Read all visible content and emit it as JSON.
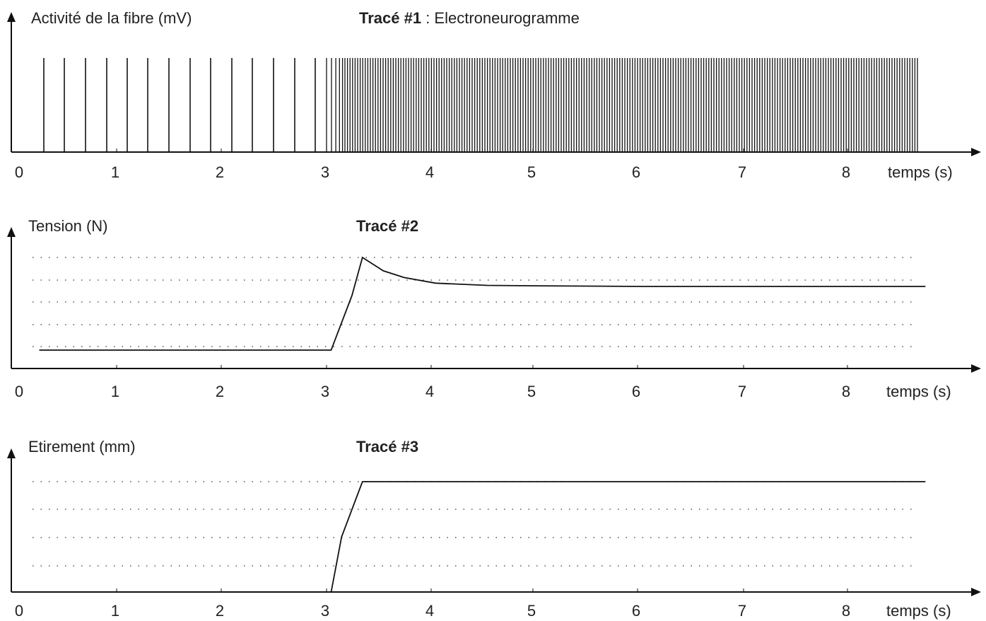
{
  "chart_data": [
    {
      "type": "line",
      "title_bold": "Tracé #1",
      "title_rest": " : Electroneurogramme",
      "ylabel": "Activité de la fibre (mV)",
      "xlabel": "temps (s)",
      "x_ticks": [
        "0",
        "1",
        "2",
        "3",
        "4",
        "5",
        "6",
        "7",
        "8"
      ],
      "xlim": [
        0,
        9.3
      ],
      "grid": false,
      "spikes": {
        "phase1": {
          "start": 0.25,
          "end": 2.9,
          "interval": 0.2
        },
        "phase2": {
          "start": 3.0,
          "end": 8.7,
          "interval": 0.025
        }
      }
    },
    {
      "type": "line",
      "title_bold": "Tracé #2",
      "ylabel": "Tension (N)",
      "xlabel": "temps (s)",
      "x_ticks": [
        "0",
        "1",
        "2",
        "3",
        "4",
        "5",
        "6",
        "7",
        "8"
      ],
      "xlim": [
        0,
        9.3
      ],
      "ylim": [
        0,
        5
      ],
      "grid": true,
      "series": [
        {
          "x": [
            0.2,
            3.0,
            3.2,
            3.3,
            3.5,
            3.7,
            4.0,
            4.5,
            5.0,
            5.3,
            6.0,
            7.0,
            8.0,
            8.7
          ],
          "y": [
            0.85,
            0.85,
            3.3,
            5.0,
            4.4,
            4.1,
            3.85,
            3.75,
            3.73,
            3.72,
            3.7,
            3.7,
            3.7,
            3.7
          ]
        }
      ]
    },
    {
      "type": "line",
      "title_bold": "Tracé #3",
      "ylabel": "Etirement (mm)",
      "xlabel": "temps (s)",
      "x_ticks": [
        "0",
        "1",
        "2",
        "3",
        "4",
        "5",
        "6",
        "7",
        "8"
      ],
      "xlim": [
        0,
        9.3
      ],
      "ylim": [
        0,
        4
      ],
      "grid": true,
      "series": [
        {
          "x": [
            0.2,
            3.0,
            3.1,
            3.3,
            8.7
          ],
          "y": [
            0,
            0,
            2.0,
            4.0,
            4.0
          ]
        }
      ]
    }
  ]
}
